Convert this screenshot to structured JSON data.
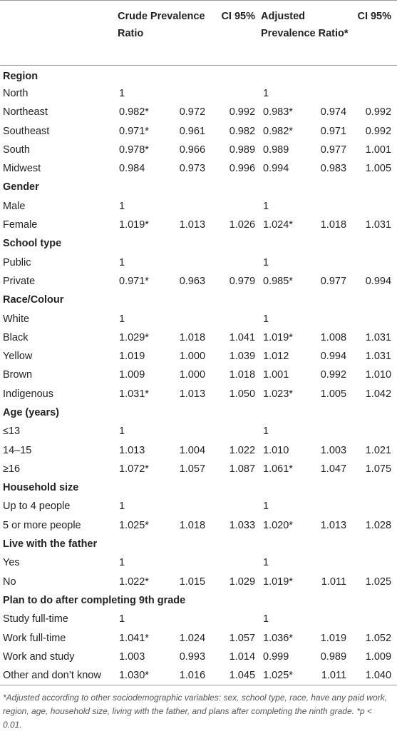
{
  "header": {
    "label": "",
    "crude": "Crude Prevalence Ratio",
    "ci1": "CI 95%",
    "adjusted": "Adjusted Prevalence Ratio*",
    "ci2": "CI 95%"
  },
  "rows": [
    {
      "type": "section",
      "label": "Region"
    },
    {
      "type": "data",
      "label": "North",
      "cpr": "1",
      "cl": "",
      "cu": "",
      "apr": "1",
      "al": "",
      "au": ""
    },
    {
      "type": "data",
      "label": "Northeast",
      "cpr": "0.982*",
      "cl": "0.972",
      "cu": "0.992",
      "apr": "0.983*",
      "al": "0.974",
      "au": "0.992"
    },
    {
      "type": "data",
      "label": "Southeast",
      "cpr": "0.971*",
      "cl": "0.961",
      "cu": "0.982",
      "apr": "0.982*",
      "al": "0.971",
      "au": "0.992"
    },
    {
      "type": "data",
      "label": "South",
      "cpr": "0.978*",
      "cl": "0.966",
      "cu": "0.989",
      "apr": "0.989",
      "al": "0.977",
      "au": "1.001"
    },
    {
      "type": "data",
      "label": "Midwest",
      "cpr": "0.984",
      "cl": "0.973",
      "cu": "0.996",
      "apr": "0.994",
      "al": "0.983",
      "au": "1.005"
    },
    {
      "type": "section",
      "label": "Gender"
    },
    {
      "type": "data",
      "label": "Male",
      "cpr": "1",
      "cl": "",
      "cu": "",
      "apr": "1",
      "al": "",
      "au": ""
    },
    {
      "type": "data",
      "label": "Female",
      "cpr": "1.019*",
      "cl": "1.013",
      "cu": "1.026",
      "apr": "1.024*",
      "al": "1.018",
      "au": "1.031"
    },
    {
      "type": "section",
      "label": "School type"
    },
    {
      "type": "data",
      "label": "Public",
      "cpr": "1",
      "cl": "",
      "cu": "",
      "apr": "1",
      "al": "",
      "au": ""
    },
    {
      "type": "data",
      "label": "Private",
      "cpr": "0.971*",
      "cl": "0.963",
      "cu": "0.979",
      "apr": "0.985*",
      "al": "0.977",
      "au": "0.994"
    },
    {
      "type": "section",
      "label": "Race/Colour"
    },
    {
      "type": "data",
      "label": "White",
      "cpr": "1",
      "cl": "",
      "cu": "",
      "apr": "1",
      "al": "",
      "au": ""
    },
    {
      "type": "data",
      "label": "Black",
      "cpr": "1.029*",
      "cl": "1.018",
      "cu": "1.041",
      "apr": "1.019*",
      "al": "1.008",
      "au": "1.031"
    },
    {
      "type": "data",
      "label": "Yellow",
      "cpr": "1.019",
      "cl": "1.000",
      "cu": "1.039",
      "apr": "1.012",
      "al": "0.994",
      "au": "1.031"
    },
    {
      "type": "data",
      "label": "Brown",
      "cpr": "1.009",
      "cl": "1.000",
      "cu": "1.018",
      "apr": "1.001",
      "al": "0.992",
      "au": "1.010"
    },
    {
      "type": "data",
      "label": "Indigenous",
      "cpr": "1.031*",
      "cl": "1.013",
      "cu": "1.050",
      "apr": "1.023*",
      "al": "1.005",
      "au": "1.042"
    },
    {
      "type": "section",
      "label": "Age (years)"
    },
    {
      "type": "data",
      "label": "≤13",
      "cpr": "1",
      "cl": "",
      "cu": "",
      "apr": "1",
      "al": "",
      "au": ""
    },
    {
      "type": "data",
      "label": "14–15",
      "cpr": "1.013",
      "cl": "1.004",
      "cu": "1.022",
      "apr": "1.010",
      "al": "1.003",
      "au": "1.021"
    },
    {
      "type": "data",
      "label": "≥16",
      "cpr": "1.072*",
      "cl": "1.057",
      "cu": "1.087",
      "apr": "1.061*",
      "al": "1.047",
      "au": "1.075"
    },
    {
      "type": "section",
      "label": "Household size"
    },
    {
      "type": "data",
      "label": "Up to 4 people",
      "cpr": "1",
      "cl": "",
      "cu": "",
      "apr": "1",
      "al": "",
      "au": ""
    },
    {
      "type": "data",
      "label": "5 or more people",
      "cpr": "1.025*",
      "cl": "1.018",
      "cu": "1.033",
      "apr": "1.020*",
      "al": "1.013",
      "au": "1.028"
    },
    {
      "type": "section",
      "label": "Live with the father"
    },
    {
      "type": "data",
      "label": "Yes",
      "cpr": "1",
      "cl": "",
      "cu": "",
      "apr": "1",
      "al": "",
      "au": ""
    },
    {
      "type": "data",
      "label": "No",
      "cpr": "1.022*",
      "cl": "1.015",
      "cu": "1.029",
      "apr": "1.019*",
      "al": "1.011",
      "au": "1.025"
    },
    {
      "type": "section",
      "label": "Plan to do after completing 9th grade"
    },
    {
      "type": "data",
      "label": "Study full-time",
      "cpr": "1",
      "cl": "",
      "cu": "",
      "apr": "1",
      "al": "",
      "au": ""
    },
    {
      "type": "data",
      "label": "Work full-time",
      "cpr": "1.041*",
      "cl": "1.024",
      "cu": "1.057",
      "apr": "1.036*",
      "al": "1.019",
      "au": "1.052"
    },
    {
      "type": "data",
      "label": "Work and study",
      "cpr": "1.003",
      "cl": "0.993",
      "cu": "1.014",
      "apr": "0.999",
      "al": "0.989",
      "au": "1.009"
    },
    {
      "type": "data",
      "label": "Other and don’t know",
      "cpr": "1.030*",
      "cl": "1.016",
      "cu": "1.045",
      "apr": "1.025*",
      "al": "1.011",
      "au": "1.040"
    }
  ],
  "footnote": "*Adjusted according to other sociodemographic variables: sex, school type, race, have any paid work, region, age, household size, living with the father, and plans after completing the ninth grade. *p < 0.01."
}
